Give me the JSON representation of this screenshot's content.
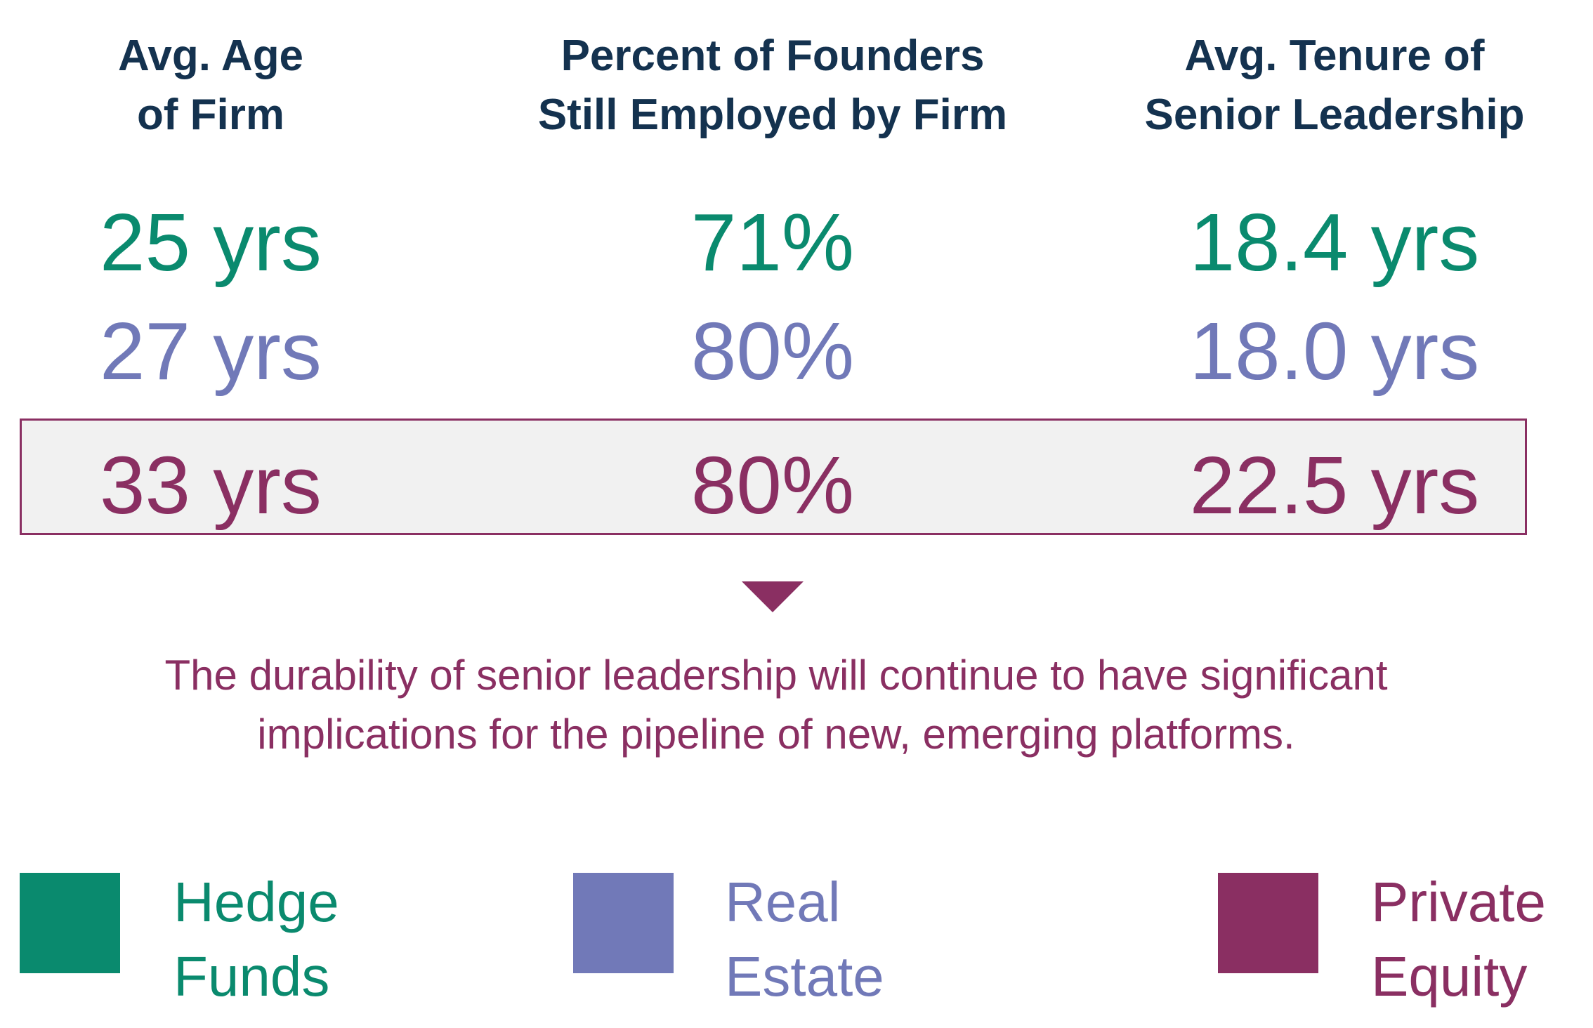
{
  "chart_data": {
    "type": "table",
    "columns": [
      {
        "line1": "Avg. Age",
        "line2": "of Firm"
      },
      {
        "line1": "Percent of Founders",
        "line2": "Still Employed by Firm"
      },
      {
        "line1": "Avg. Tenure of",
        "line2": "Senior Leadership"
      }
    ],
    "rows": [
      {
        "series": "Hedge Funds",
        "color": "#0a8a6e",
        "values": [
          "25 yrs",
          "71%",
          "18.4 yrs"
        ],
        "numeric": [
          25,
          71,
          18.4
        ]
      },
      {
        "series": "Real Estate",
        "color": "#7179b8",
        "values": [
          "27 yrs",
          "80%",
          "18.0 yrs"
        ],
        "numeric": [
          27,
          80,
          18.0
        ]
      },
      {
        "series": "Private Equity",
        "color": "#8a2f62",
        "values": [
          "33 yrs",
          "80%",
          "22.5 yrs"
        ],
        "numeric": [
          33,
          80,
          22.5
        ],
        "highlighted": true
      }
    ],
    "annotation": {
      "line1": "The durability of senior leadership will continue to have significant",
      "line2": "implications for the pipeline of new, emerging platforms."
    },
    "legend": [
      {
        "line1": "Hedge",
        "line2": "Funds",
        "color": "#0a8a6e"
      },
      {
        "line1": "Real",
        "line2": "Estate",
        "color": "#7179b8"
      },
      {
        "line1": "Private",
        "line2": "Equity",
        "color": "#8a2f62"
      }
    ]
  },
  "colors": {
    "header_text": "#14324f",
    "highlight_border": "#8a2f62",
    "highlight_fill": "#f1f1f1"
  }
}
